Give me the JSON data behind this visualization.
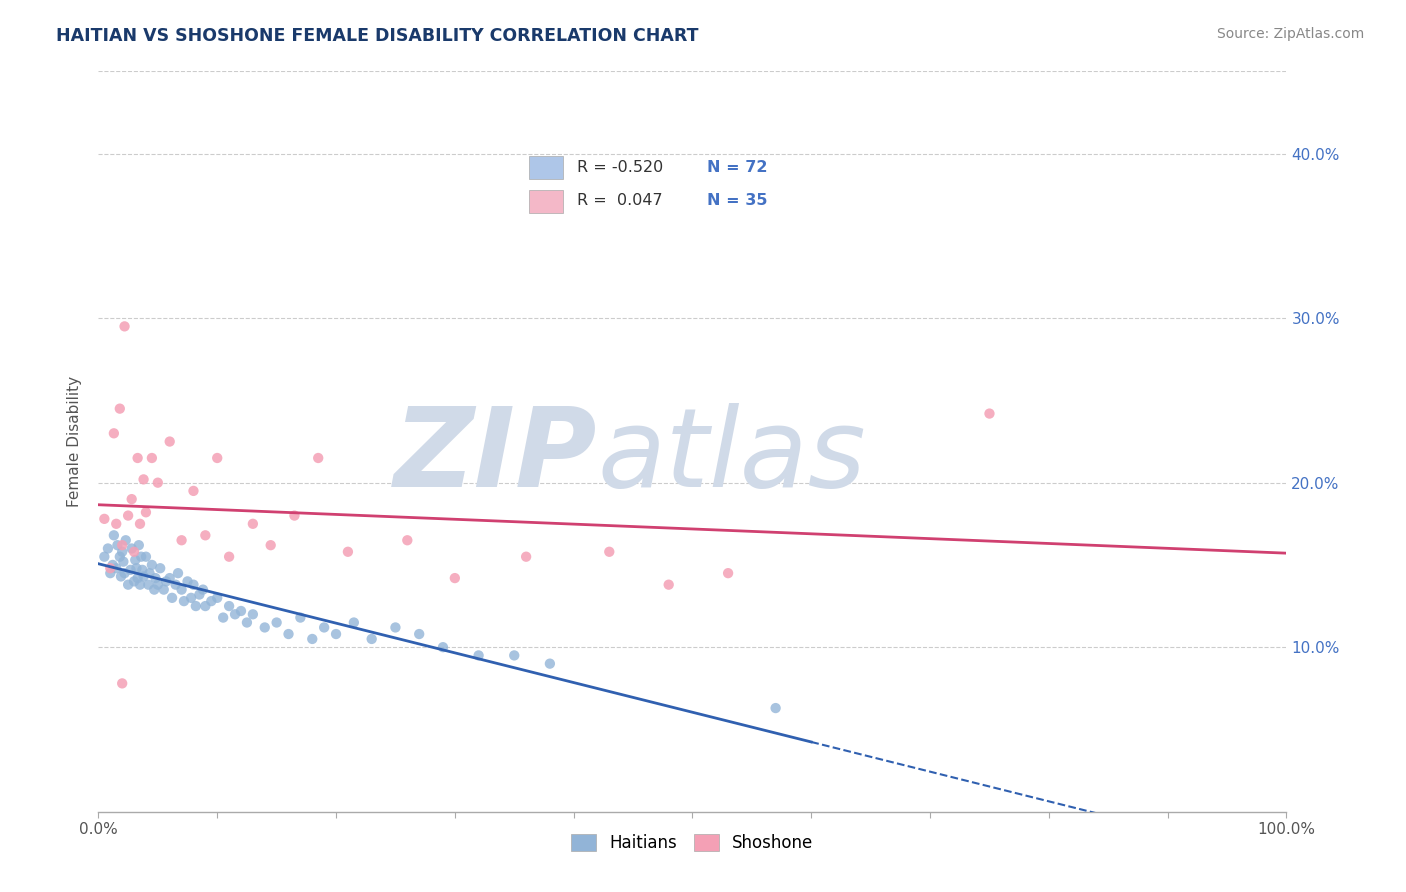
{
  "title": "HAITIAN VS SHOSHONE FEMALE DISABILITY CORRELATION CHART",
  "source": "Source: ZipAtlas.com",
  "ylabel": "Female Disability",
  "xlim": [
    0,
    1
  ],
  "ylim": [
    0,
    0.45
  ],
  "yticks": [
    0.0,
    0.1,
    0.2,
    0.3,
    0.4
  ],
  "ytick_labels_right": [
    "",
    "10.0%",
    "20.0%",
    "30.0%",
    "40.0%"
  ],
  "xticks": [
    0.0,
    0.1,
    0.2,
    0.3,
    0.4,
    0.5,
    0.6,
    0.7,
    0.8,
    0.9,
    1.0
  ],
  "xtick_labels": [
    "0.0%",
    "",
    "",
    "",
    "",
    "",
    "",
    "",
    "",
    "",
    "100.0%"
  ],
  "haitian_color": "#92b4d7",
  "shoshone_color": "#f4a0b5",
  "trend_haitian_color": "#3060b0",
  "trend_shoshone_color": "#d04070",
  "watermark_zip": "ZIP",
  "watermark_atlas": "atlas",
  "watermark_color": "#d0dae8",
  "background_color": "#ffffff",
  "grid_color": "#cccccc",
  "title_color": "#1a3a6b",
  "right_axis_color": "#4472c4",
  "haitian_R": -0.52,
  "haitian_N": 72,
  "shoshone_R": 0.047,
  "shoshone_N": 35,
  "legend_blue_color": "#aec6e8",
  "legend_pink_color": "#f4b8c8",
  "haitian_pts_x": [
    0.005,
    0.008,
    0.01,
    0.012,
    0.013,
    0.015,
    0.016,
    0.018,
    0.019,
    0.02,
    0.021,
    0.022,
    0.023,
    0.025,
    0.027,
    0.028,
    0.03,
    0.031,
    0.032,
    0.033,
    0.034,
    0.035,
    0.036,
    0.037,
    0.038,
    0.04,
    0.042,
    0.043,
    0.045,
    0.047,
    0.048,
    0.05,
    0.052,
    0.055,
    0.057,
    0.06,
    0.062,
    0.065,
    0.067,
    0.07,
    0.072,
    0.075,
    0.078,
    0.08,
    0.082,
    0.085,
    0.088,
    0.09,
    0.095,
    0.1,
    0.105,
    0.11,
    0.115,
    0.12,
    0.125,
    0.13,
    0.14,
    0.15,
    0.16,
    0.17,
    0.18,
    0.19,
    0.2,
    0.215,
    0.23,
    0.25,
    0.27,
    0.29,
    0.32,
    0.35,
    0.38,
    0.57
  ],
  "haitian_pts_y": [
    0.155,
    0.16,
    0.145,
    0.15,
    0.168,
    0.148,
    0.162,
    0.155,
    0.143,
    0.158,
    0.152,
    0.145,
    0.165,
    0.138,
    0.147,
    0.16,
    0.14,
    0.153,
    0.148,
    0.142,
    0.162,
    0.138,
    0.155,
    0.147,
    0.143,
    0.155,
    0.138,
    0.145,
    0.15,
    0.135,
    0.142,
    0.138,
    0.148,
    0.135,
    0.14,
    0.142,
    0.13,
    0.138,
    0.145,
    0.135,
    0.128,
    0.14,
    0.13,
    0.138,
    0.125,
    0.132,
    0.135,
    0.125,
    0.128,
    0.13,
    0.118,
    0.125,
    0.12,
    0.122,
    0.115,
    0.12,
    0.112,
    0.115,
    0.108,
    0.118,
    0.105,
    0.112,
    0.108,
    0.115,
    0.105,
    0.112,
    0.108,
    0.1,
    0.095,
    0.095,
    0.09,
    0.063
  ],
  "shoshone_pts_x": [
    0.005,
    0.01,
    0.013,
    0.015,
    0.018,
    0.02,
    0.022,
    0.025,
    0.028,
    0.03,
    0.033,
    0.035,
    0.038,
    0.04,
    0.045,
    0.05,
    0.06,
    0.07,
    0.08,
    0.09,
    0.1,
    0.11,
    0.13,
    0.145,
    0.165,
    0.185,
    0.21,
    0.26,
    0.3,
    0.36,
    0.43,
    0.48,
    0.53,
    0.75,
    0.02
  ],
  "shoshone_pts_y": [
    0.178,
    0.148,
    0.23,
    0.175,
    0.245,
    0.162,
    0.295,
    0.18,
    0.19,
    0.158,
    0.215,
    0.175,
    0.202,
    0.182,
    0.215,
    0.2,
    0.225,
    0.165,
    0.195,
    0.168,
    0.215,
    0.155,
    0.175,
    0.162,
    0.18,
    0.215,
    0.158,
    0.165,
    0.142,
    0.155,
    0.158,
    0.138,
    0.145,
    0.242,
    0.078
  ]
}
